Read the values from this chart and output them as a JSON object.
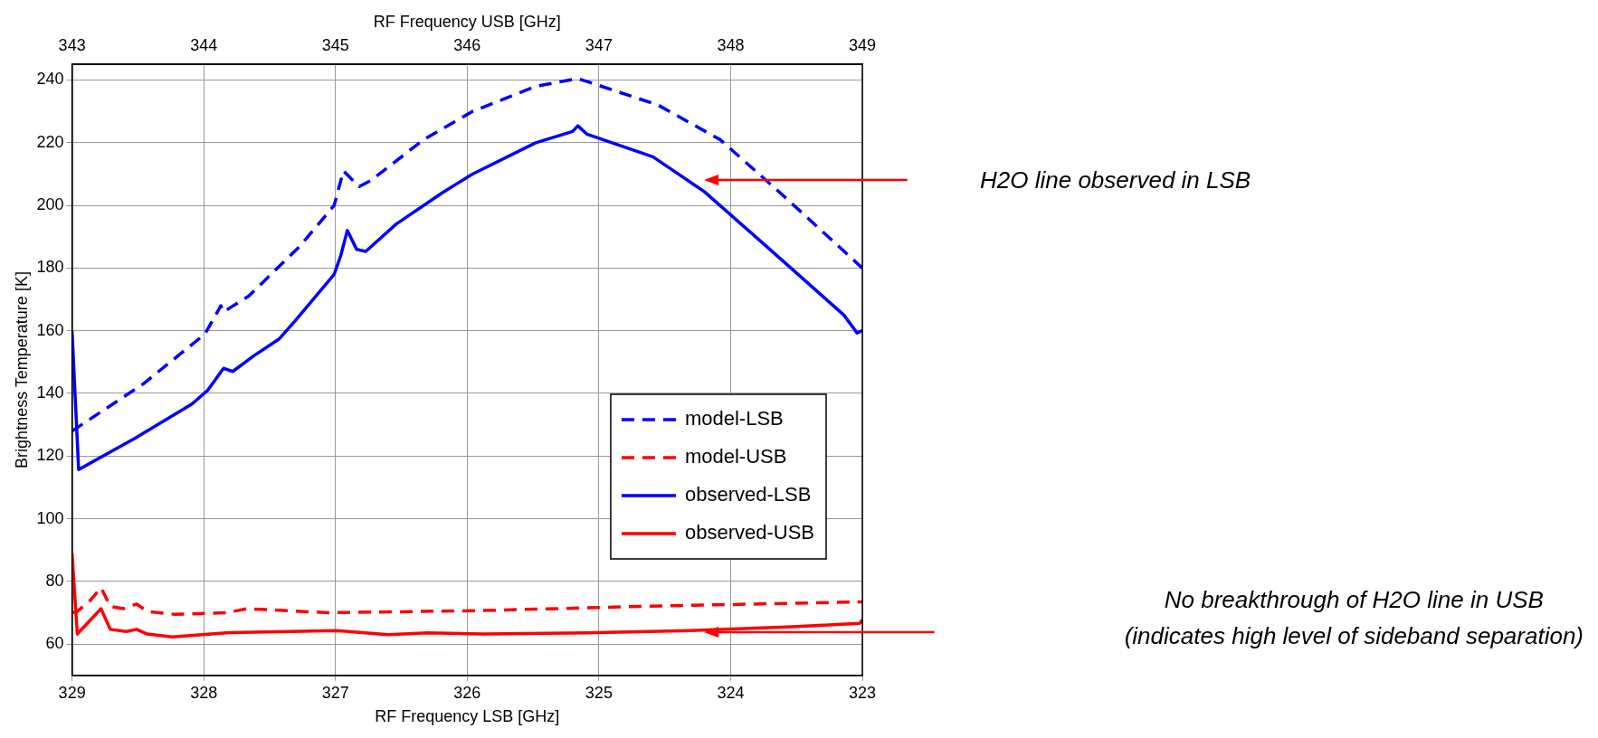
{
  "chart_data": {
    "type": "line",
    "xlabel": "RF Frequency LSB [GHz]",
    "x2label": "RF Frequency USB [GHz]",
    "ylabel": "Brightness Temperature [K]",
    "xlim": [
      329,
      323
    ],
    "xticks": [
      329,
      328,
      327,
      326,
      325,
      324,
      323
    ],
    "x2lim": [
      343,
      349
    ],
    "x2ticks": [
      343,
      344,
      345,
      346,
      347,
      348,
      349
    ],
    "ylim": [
      50,
      245
    ],
    "yticks": [
      60,
      80,
      100,
      120,
      140,
      160,
      180,
      200,
      220,
      240
    ],
    "grid": true,
    "legend": "center right",
    "series": [
      {
        "name": "model-LSB",
        "color": "#0000ff",
        "line_style": "dashed",
        "x": [
          329,
          328.46,
          327.99,
          327.87,
          327.85,
          327.66,
          327.27,
          327.01,
          326.94,
          326.82,
          326.73,
          326.33,
          325.96,
          325.48,
          325.16,
          324.55,
          324.08,
          323.61,
          323
        ],
        "values": [
          128,
          143,
          159,
          168,
          166,
          171,
          187,
          200,
          211,
          206,
          208,
          221,
          230,
          238,
          240.5,
          232,
          221,
          203.5,
          180
        ]
      },
      {
        "name": "model-USB",
        "color": "#ff0000",
        "line_style": "dashed",
        "x": [
          329,
          328.96,
          328.87,
          328.78,
          328.71,
          328.61,
          328.51,
          328.43,
          328.22,
          327.83,
          327.67,
          327.05,
          325.88,
          324.7,
          323
        ],
        "values": [
          70,
          70.4,
          73.6,
          78,
          72,
          71.3,
          72.8,
          70.4,
          69.5,
          70,
          71.3,
          70,
          70.7,
          72,
          73.5
        ]
      },
      {
        "name": "observed-LSB",
        "color": "#0000ff",
        "line_style": "solid",
        "x": [
          329,
          328.95,
          328.53,
          328.09,
          327.97,
          327.85,
          327.78,
          327.62,
          327.43,
          327.31,
          327.01,
          326.96,
          326.91,
          326.84,
          326.77,
          326.54,
          326.19,
          325.96,
          325.48,
          325.2,
          325.16,
          325.09,
          324.59,
          324.2,
          323.73,
          323.14,
          323.04,
          323
        ],
        "values": [
          160,
          115.7,
          125.5,
          136.6,
          141,
          148,
          147,
          152,
          157.3,
          163,
          178,
          184,
          192,
          186,
          185.3,
          194,
          204,
          210,
          220,
          223.6,
          225.4,
          222.7,
          215.5,
          204.4,
          187,
          165,
          159.3,
          160
        ]
      },
      {
        "name": "observed-USB",
        "color": "#ff0000",
        "line_style": "solid",
        "x": [
          329,
          328.96,
          328.78,
          328.71,
          328.59,
          328.51,
          328.43,
          328.24,
          327.83,
          326.99,
          326.6,
          326.3,
          325.88,
          325.09,
          324.31,
          323.53,
          323.02,
          323
        ],
        "values": [
          89,
          63.2,
          71.3,
          64.7,
          64,
          64.7,
          63.2,
          62.3,
          63.6,
          64.3,
          63,
          63.6,
          63.2,
          63.6,
          64.3,
          65.5,
          66.6,
          67.7
        ]
      }
    ],
    "annotations": [
      "H2O line observed in LSB",
      "No breakthrough of H2O line in USB\n(indicates high level of sideband separation)"
    ]
  }
}
